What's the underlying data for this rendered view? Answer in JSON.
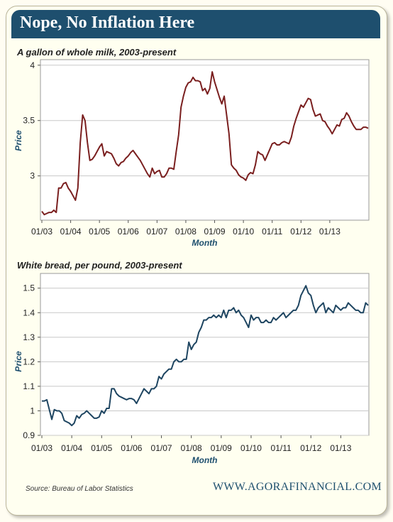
{
  "banner": {
    "title": "Nope, No Inflation Here"
  },
  "footer": {
    "source": "Source: Bureau of Labor Statistics",
    "website": "WWW.AGORAFINANCIAL.COM"
  },
  "colors": {
    "banner": "#1e4f6e",
    "milk_line": "#7a1f1f",
    "bread_line": "#1e4561",
    "axis_label": "#1e4f6e"
  },
  "chart_data": [
    {
      "type": "line",
      "title": "A gallon of whole milk, 2003-present",
      "xlabel": "Month",
      "ylabel": "Price",
      "ylim": [
        2.6,
        4.05
      ],
      "yticks": [
        "4",
        "3.5",
        "3"
      ],
      "ytick_values": [
        4,
        3.5,
        3
      ],
      "xticks": [
        "01/03",
        "01/04",
        "01/05",
        "01/06",
        "01/07",
        "01/08",
        "01/09",
        "01/10",
        "01/11",
        "01/12",
        "01/13"
      ],
      "grid": true,
      "series": [
        {
          "values": [
            2.68,
            2.65,
            2.66,
            2.67,
            2.67,
            2.69,
            2.67,
            2.89,
            2.89,
            2.93,
            2.94,
            2.89,
            2.86,
            2.82,
            2.78,
            2.89,
            3.3,
            3.55,
            3.5,
            3.3,
            3.14,
            3.15,
            3.18,
            3.22,
            3.26,
            3.29,
            3.18,
            3.22,
            3.21,
            3.2,
            3.16,
            3.11,
            3.09,
            3.12,
            3.13,
            3.16,
            3.18,
            3.21,
            3.23,
            3.2,
            3.17,
            3.14,
            3.1,
            3.06,
            3.02,
            2.99,
            3.07,
            3.02,
            3.04,
            3.05,
            2.99,
            2.99,
            3.02,
            3.07,
            3.07,
            3.06,
            3.22,
            3.37,
            3.62,
            3.72,
            3.8,
            3.84,
            3.85,
            3.89,
            3.86,
            3.86,
            3.85,
            3.77,
            3.79,
            3.74,
            3.79,
            3.94,
            3.85,
            3.78,
            3.71,
            3.65,
            3.72,
            3.55,
            3.38,
            3.1,
            3.07,
            3.05,
            3.01,
            2.99,
            2.98,
            2.96,
            3.01,
            3.03,
            3.02,
            3.1,
            3.22,
            3.2,
            3.19,
            3.14,
            3.19,
            3.24,
            3.29,
            3.3,
            3.28,
            3.28,
            3.3,
            3.31,
            3.3,
            3.29,
            3.35,
            3.45,
            3.52,
            3.58,
            3.64,
            3.62,
            3.66,
            3.7,
            3.69,
            3.6,
            3.54,
            3.55,
            3.56,
            3.5,
            3.49,
            3.45,
            3.42,
            3.38,
            3.42,
            3.46,
            3.45,
            3.51,
            3.52,
            3.57,
            3.54,
            3.49,
            3.45,
            3.42,
            3.42,
            3.42,
            3.44,
            3.44,
            3.43
          ]
        }
      ]
    },
    {
      "type": "line",
      "title": "White bread, per pound, 2003-present",
      "xlabel": "Month",
      "ylabel": "Price",
      "ylim": [
        0.9,
        1.56
      ],
      "yticks": [
        "1.5",
        "1.4",
        "1.3",
        "1.2",
        "1.1",
        "1",
        "0.9"
      ],
      "ytick_values": [
        1.5,
        1.4,
        1.3,
        1.2,
        1.1,
        1.0,
        0.9
      ],
      "xticks": [
        "01/03",
        "01/04",
        "01/05",
        "01/06",
        "01/07",
        "01/08",
        "01/09",
        "01/10",
        "01/11",
        "01/12",
        "01/13"
      ],
      "grid": true,
      "series": [
        {
          "values": [
            1.04,
            1.04,
            1.045,
            1.005,
            0.965,
            1.005,
            1.0,
            1.0,
            0.99,
            0.96,
            0.955,
            0.95,
            0.94,
            0.95,
            0.98,
            0.97,
            0.985,
            0.99,
            1.0,
            0.99,
            0.98,
            0.97,
            0.97,
            0.975,
            1.0,
            0.99,
            1.01,
            1.01,
            1.09,
            1.09,
            1.07,
            1.06,
            1.055,
            1.05,
            1.045,
            1.05,
            1.05,
            1.045,
            1.03,
            1.05,
            1.07,
            1.09,
            1.08,
            1.07,
            1.09,
            1.09,
            1.1,
            1.14,
            1.13,
            1.15,
            1.16,
            1.17,
            1.17,
            1.2,
            1.21,
            1.2,
            1.2,
            1.21,
            1.21,
            1.28,
            1.25,
            1.27,
            1.28,
            1.32,
            1.34,
            1.37,
            1.37,
            1.38,
            1.38,
            1.39,
            1.38,
            1.39,
            1.38,
            1.41,
            1.38,
            1.41,
            1.41,
            1.42,
            1.4,
            1.41,
            1.39,
            1.38,
            1.36,
            1.34,
            1.39,
            1.37,
            1.38,
            1.38,
            1.36,
            1.36,
            1.37,
            1.36,
            1.36,
            1.38,
            1.37,
            1.38,
            1.39,
            1.4,
            1.38,
            1.39,
            1.4,
            1.41,
            1.41,
            1.43,
            1.47,
            1.49,
            1.51,
            1.48,
            1.47,
            1.43,
            1.4,
            1.42,
            1.43,
            1.44,
            1.4,
            1.42,
            1.41,
            1.4,
            1.43,
            1.42,
            1.41,
            1.42,
            1.42,
            1.44,
            1.43,
            1.42,
            1.41,
            1.41,
            1.4,
            1.4,
            1.44,
            1.43
          ]
        }
      ]
    }
  ]
}
